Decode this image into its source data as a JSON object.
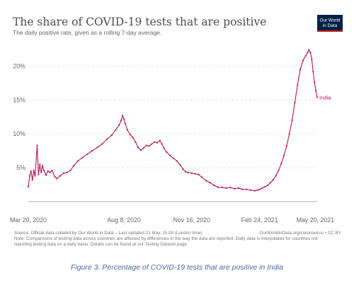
{
  "chart_data": {
    "type": "line",
    "title": "The share of COVID-19 tests that are positive",
    "subtitle": "The daily positive rate, given as a rolling 7-day average.",
    "y_unit": "%",
    "ylim": [
      0,
      24
    ],
    "y_ticks": [
      5,
      10,
      15,
      20
    ],
    "y_tick_labels": [
      "5%",
      "10%",
      "15%",
      "20%"
    ],
    "x_tick_labels": [
      "Mar 20, 2020",
      "Aug 8, 2020",
      "Nov 16, 2020",
      "Feb 24, 2021",
      "May 20, 2021"
    ],
    "x_tick_dates": [
      "2020-03-20",
      "2020-08-08",
      "2020-11-16",
      "2021-02-24",
      "2021-05-20"
    ],
    "xlim": [
      "2020-03-20",
      "2021-05-20"
    ],
    "grid": "horizontal dashed",
    "legend": "none",
    "series": [
      {
        "name": "India",
        "color": "#b5145b",
        "points": [
          [
            "2020-03-20",
            2.2
          ],
          [
            "2020-03-22",
            3.8
          ],
          [
            "2020-03-24",
            4.5
          ],
          [
            "2020-03-26",
            3.2
          ],
          [
            "2020-03-28",
            4.6
          ],
          [
            "2020-03-30",
            3.8
          ],
          [
            "2020-04-02",
            8.3
          ],
          [
            "2020-04-04",
            4.0
          ],
          [
            "2020-04-06",
            5.5
          ],
          [
            "2020-04-08",
            4.3
          ],
          [
            "2020-04-10",
            5.3
          ],
          [
            "2020-04-12",
            4.6
          ],
          [
            "2020-04-15",
            3.9
          ],
          [
            "2020-04-18",
            4.5
          ],
          [
            "2020-04-21",
            4.3
          ],
          [
            "2020-04-24",
            4.6
          ],
          [
            "2020-04-28",
            3.7
          ],
          [
            "2020-05-01",
            3.4
          ],
          [
            "2020-05-06",
            3.8
          ],
          [
            "2020-05-11",
            4.2
          ],
          [
            "2020-05-16",
            4.3
          ],
          [
            "2020-05-21",
            4.6
          ],
          [
            "2020-05-26",
            5.3
          ],
          [
            "2020-06-01",
            6.0
          ],
          [
            "2020-06-08",
            6.5
          ],
          [
            "2020-06-15",
            7.0
          ],
          [
            "2020-06-22",
            7.5
          ],
          [
            "2020-06-30",
            8.0
          ],
          [
            "2020-07-07",
            8.5
          ],
          [
            "2020-07-14",
            9.2
          ],
          [
            "2020-07-21",
            9.8
          ],
          [
            "2020-07-27",
            10.6
          ],
          [
            "2020-08-01",
            11.3
          ],
          [
            "2020-08-04",
            12.0
          ],
          [
            "2020-08-06",
            12.7
          ],
          [
            "2020-08-08",
            12.2
          ],
          [
            "2020-08-10",
            11.5
          ],
          [
            "2020-08-13",
            10.6
          ],
          [
            "2020-08-17",
            9.9
          ],
          [
            "2020-08-21",
            9.5
          ],
          [
            "2020-08-25",
            8.8
          ],
          [
            "2020-08-29",
            8.0
          ],
          [
            "2020-09-02",
            7.6
          ],
          [
            "2020-09-06",
            7.9
          ],
          [
            "2020-09-10",
            8.3
          ],
          [
            "2020-09-14",
            8.2
          ],
          [
            "2020-09-18",
            8.5
          ],
          [
            "2020-09-22",
            8.8
          ],
          [
            "2020-09-26",
            8.7
          ],
          [
            "2020-09-30",
            9.0
          ],
          [
            "2020-10-03",
            8.5
          ],
          [
            "2020-10-06",
            7.9
          ],
          [
            "2020-10-10",
            7.3
          ],
          [
            "2020-10-15",
            6.8
          ],
          [
            "2020-10-20",
            6.4
          ],
          [
            "2020-10-25",
            6.0
          ],
          [
            "2020-10-30",
            5.4
          ],
          [
            "2020-11-03",
            4.8
          ],
          [
            "2020-11-07",
            4.4
          ],
          [
            "2020-11-11",
            4.3
          ],
          [
            "2020-11-16",
            4.2
          ],
          [
            "2020-11-21",
            4.1
          ],
          [
            "2020-11-26",
            4.0
          ],
          [
            "2020-12-01",
            3.6
          ],
          [
            "2020-12-07",
            3.1
          ],
          [
            "2020-12-13",
            2.8
          ],
          [
            "2020-12-19",
            2.4
          ],
          [
            "2020-12-25",
            2.1
          ],
          [
            "2020-12-31",
            2.1
          ],
          [
            "2021-01-06",
            2.0
          ],
          [
            "2021-01-12",
            2.1
          ],
          [
            "2021-01-18",
            1.9
          ],
          [
            "2021-01-24",
            2.0
          ],
          [
            "2021-01-30",
            1.8
          ],
          [
            "2021-02-05",
            1.8
          ],
          [
            "2021-02-11",
            1.7
          ],
          [
            "2021-02-17",
            1.6
          ],
          [
            "2021-02-21",
            1.7
          ],
          [
            "2021-02-24",
            1.8
          ],
          [
            "2021-02-28",
            2.0
          ],
          [
            "2021-03-04",
            2.2
          ],
          [
            "2021-03-08",
            2.4
          ],
          [
            "2021-03-12",
            2.8
          ],
          [
            "2021-03-16",
            3.2
          ],
          [
            "2021-03-20",
            3.8
          ],
          [
            "2021-03-24",
            4.6
          ],
          [
            "2021-03-28",
            5.6
          ],
          [
            "2021-04-01",
            6.8
          ],
          [
            "2021-04-05",
            8.2
          ],
          [
            "2021-04-09",
            10.0
          ],
          [
            "2021-04-13",
            12.0
          ],
          [
            "2021-04-17",
            14.6
          ],
          [
            "2021-04-21",
            17.2
          ],
          [
            "2021-04-25",
            19.5
          ],
          [
            "2021-04-29",
            20.8
          ],
          [
            "2021-05-03",
            21.5
          ],
          [
            "2021-05-06",
            22.0
          ],
          [
            "2021-05-08",
            22.4
          ],
          [
            "2021-05-10",
            22.0
          ],
          [
            "2021-05-12",
            21.0
          ],
          [
            "2021-05-14",
            19.2
          ],
          [
            "2021-05-16",
            17.6
          ],
          [
            "2021-05-18",
            16.4
          ],
          [
            "2021-05-20",
            15.4
          ]
        ]
      }
    ]
  },
  "footer": {
    "source": "Source: Official data collated by Our World in Data – Last updated 21 May, 15:00 (London time)",
    "note_line1": "Note: Comparisons of testing data across countries are affected by differences in the way the data are reported. Daily data is interpolated for countries not",
    "note_line2": "reporting testing data on a daily basis. Details can be found at our Testing Dataset page",
    "attribution": "OurWorldInData.org/coronavirus • CC BY"
  },
  "logo": {
    "line1": "Our World",
    "line2": "in Data",
    "bg_color": "#002147",
    "accent_color": "#ce261e"
  },
  "caption": "Figure 3. Percentage of COVID-19 tests that are positive in India"
}
